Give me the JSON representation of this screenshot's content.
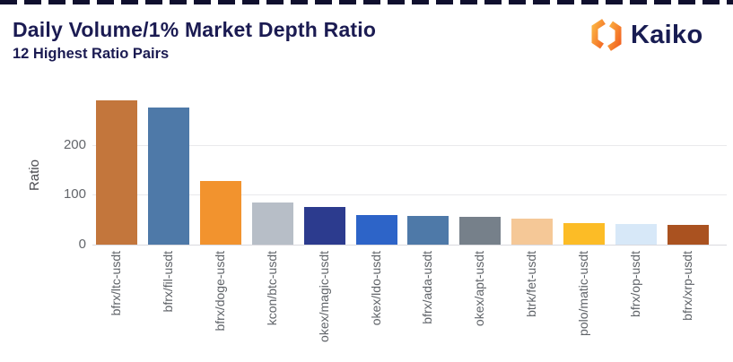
{
  "header": {
    "title": "Daily Volume/1% Market Depth Ratio",
    "subtitle": "12 Highest Ratio Pairs",
    "brand": "Kaiko"
  },
  "colors": {
    "title_navy": "#1b1b52",
    "brand_navy": "#181c52",
    "logo_orange_light": "#fbb040",
    "logo_orange_dark": "#f26522",
    "axis_text_gray": "#63666b",
    "gridline_gray": "#e9e9ec"
  },
  "chart_data": {
    "type": "bar",
    "title": "Daily Volume/1% Market Depth Ratio",
    "subtitle": "12 Highest Ratio Pairs",
    "xlabel": "",
    "ylabel": "Ratio",
    "ylim": [
      0,
      317
    ],
    "yticks": [
      0,
      100,
      200
    ],
    "grid": true,
    "legend": false,
    "categories": [
      "bfrx/ltc-usdt",
      "bfrx/fil-usdt",
      "bfrx/doge-usdt",
      "kcon/btc-usdt",
      "okex/magic-usdt",
      "okex/ldo-usdt",
      "bfrx/ada-usdt",
      "okex/apt-usdt",
      "btrk/fet-usdt",
      "polo/matic-usdt",
      "bfrx/op-usdt",
      "bfrx/xrp-usdt"
    ],
    "values": [
      290,
      275,
      128,
      85,
      75,
      60,
      58,
      55,
      53,
      44,
      42,
      40
    ],
    "bar_colors": [
      "#c3763c",
      "#4e79a8",
      "#f2932e",
      "#b7bec7",
      "#2c3b8e",
      "#2d64c8",
      "#4e79a8",
      "#76808a",
      "#f5c897",
      "#fcbc26",
      "#d7e8f8",
      "#aa5220"
    ]
  }
}
